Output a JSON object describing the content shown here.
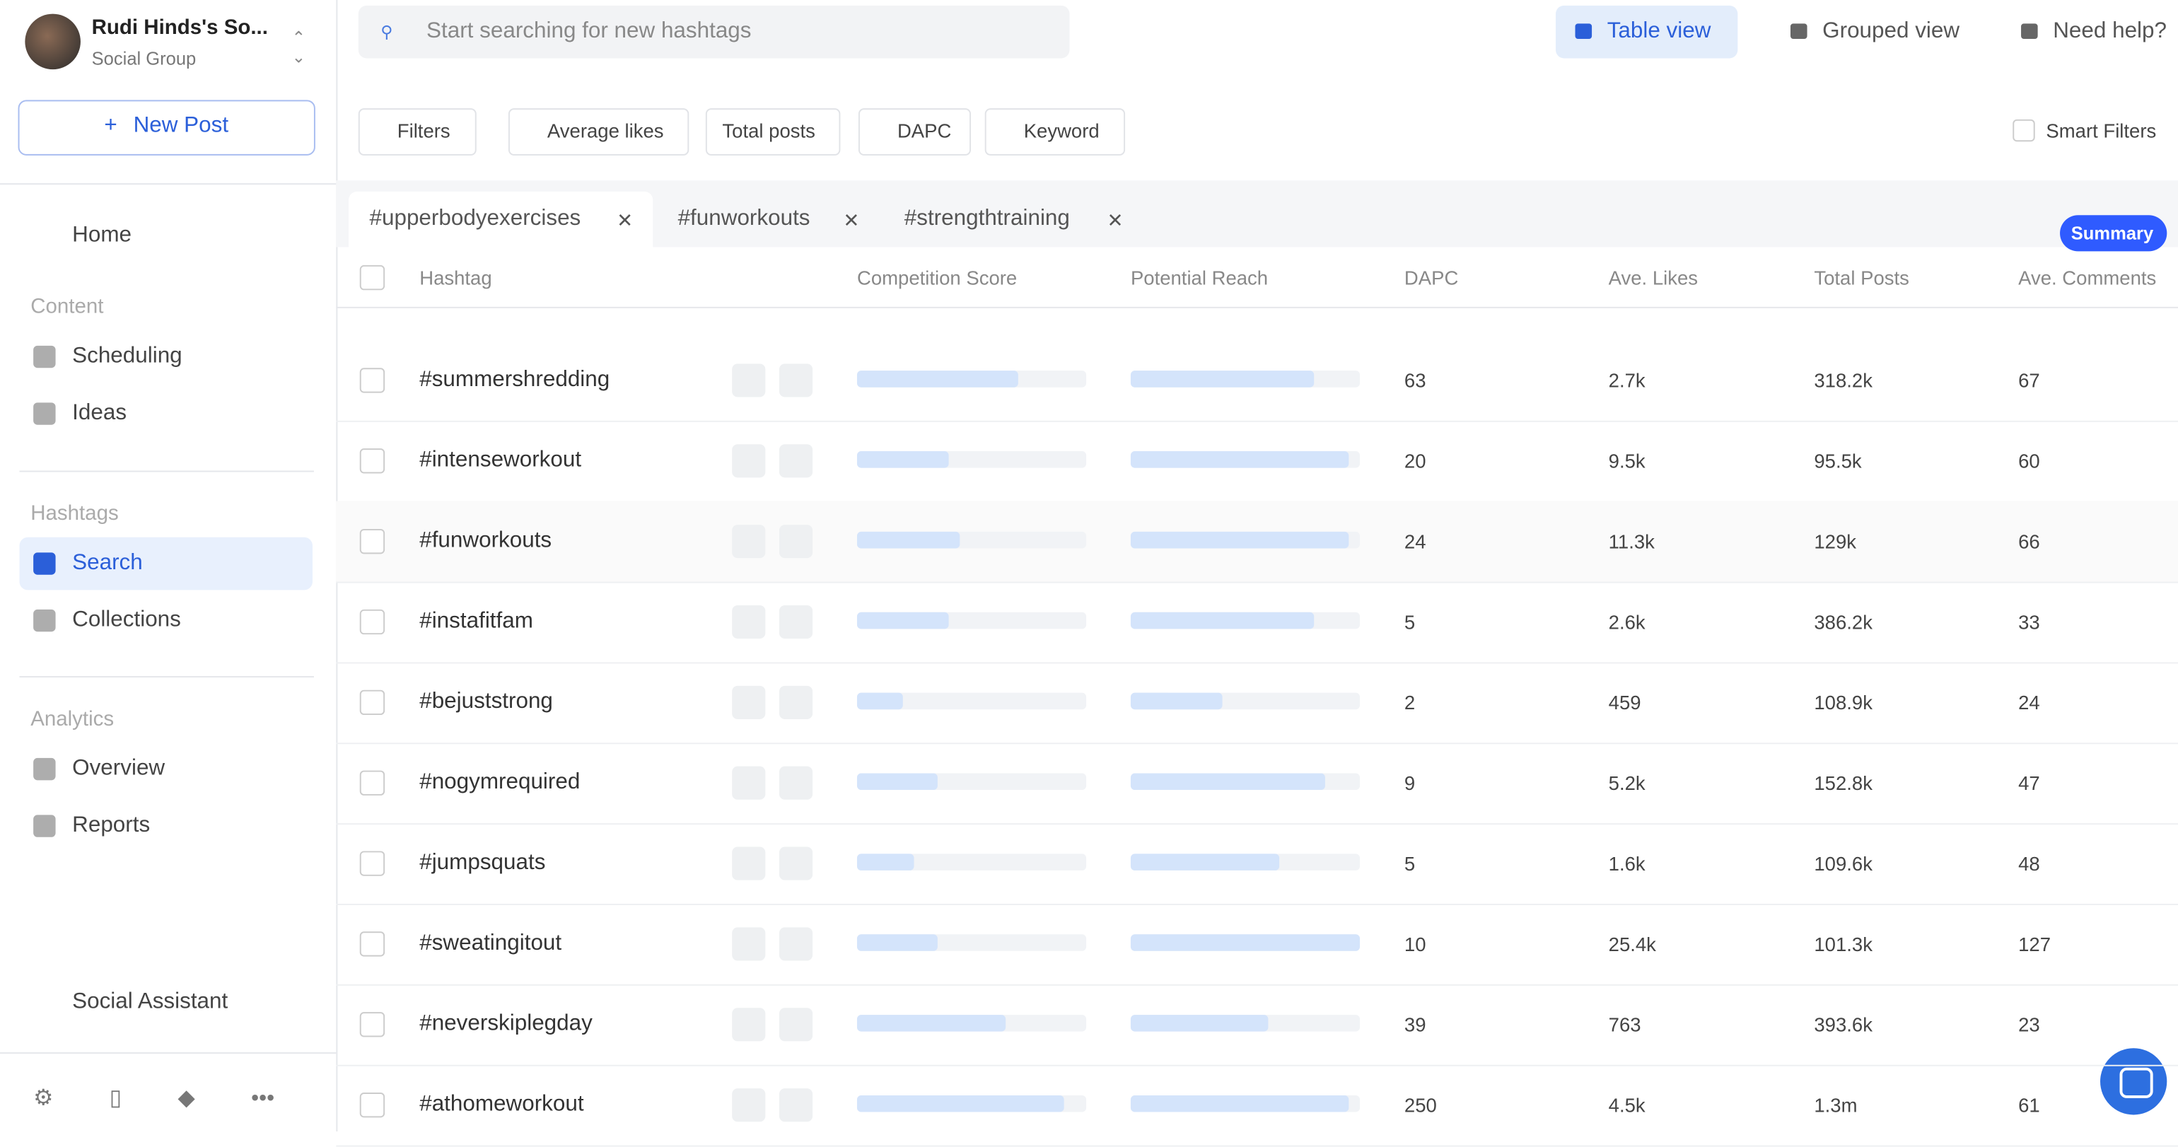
{
  "sidebar": {
    "account_name": "Rudi Hinds's So...",
    "account_type": "Social Group",
    "new_post": "New Post",
    "home": "Home",
    "sections": [
      {
        "heading": "Content",
        "items": [
          "Scheduling",
          "Ideas"
        ]
      },
      {
        "heading": "Hashtags",
        "items": [
          "Search",
          "Collections"
        ],
        "active_index": 0
      },
      {
        "heading": "Analytics",
        "items": [
          "Overview",
          "Reports"
        ]
      }
    ],
    "assistant": "Social Assistant"
  },
  "topbar": {
    "search_placeholder": "Start searching for new hashtags",
    "views": [
      "Table view",
      "Grouped view",
      "Need help?"
    ],
    "active_view": 0
  },
  "filters": {
    "buttons": [
      "Filters",
      "Average likes",
      "Total posts",
      "DAPC",
      "Keyword"
    ],
    "smart_filters": "Smart Filters"
  },
  "tabs": [
    "#upperbodyexercises",
    "#funworkouts",
    "#strengthtraining"
  ],
  "summary": "Summary",
  "table": {
    "columns": [
      "Hashtag",
      "Competition Score",
      "Potential Reach",
      "DAPC",
      "Ave. Likes",
      "Total Posts",
      "Ave. Comments"
    ],
    "rows": [
      {
        "hashtag": "#summershredding",
        "competition_score": 70,
        "potential_reach": 80,
        "dapc": 63,
        "ave_likes": "2.7k",
        "total_posts": "318.2k",
        "ave_comments": 67
      },
      {
        "hashtag": "#intenseworkout",
        "competition_score": 40,
        "potential_reach": 95,
        "dapc": 20,
        "ave_likes": "9.5k",
        "total_posts": "95.5k",
        "ave_comments": 60
      },
      {
        "hashtag": "#funworkouts",
        "competition_score": 45,
        "potential_reach": 95,
        "dapc": 24,
        "ave_likes": "11.3k",
        "total_posts": "129k",
        "ave_comments": 66
      },
      {
        "hashtag": "#instafitfam",
        "competition_score": 40,
        "potential_reach": 80,
        "dapc": 5,
        "ave_likes": "2.6k",
        "total_posts": "386.2k",
        "ave_comments": 33
      },
      {
        "hashtag": "#bejuststrong",
        "competition_score": 20,
        "potential_reach": 40,
        "dapc": 2,
        "ave_likes": "459",
        "total_posts": "108.9k",
        "ave_comments": 24
      },
      {
        "hashtag": "#nogymrequired",
        "competition_score": 35,
        "potential_reach": 85,
        "dapc": 9,
        "ave_likes": "5.2k",
        "total_posts": "152.8k",
        "ave_comments": 47
      },
      {
        "hashtag": "#jumpsquats",
        "competition_score": 25,
        "potential_reach": 65,
        "dapc": 5,
        "ave_likes": "1.6k",
        "total_posts": "109.6k",
        "ave_comments": 48
      },
      {
        "hashtag": "#sweatingitout",
        "competition_score": 35,
        "potential_reach": 100,
        "dapc": 10,
        "ave_likes": "25.4k",
        "total_posts": "101.3k",
        "ave_comments": 127
      },
      {
        "hashtag": "#neverskiplegday",
        "competition_score": 65,
        "potential_reach": 60,
        "dapc": 39,
        "ave_likes": "763",
        "total_posts": "393.6k",
        "ave_comments": 23
      },
      {
        "hashtag": "#athomeworkout",
        "competition_score": 90,
        "potential_reach": 95,
        "dapc": 250,
        "ave_likes": "4.5k",
        "total_posts": "1.3m",
        "ave_comments": 61
      }
    ]
  }
}
